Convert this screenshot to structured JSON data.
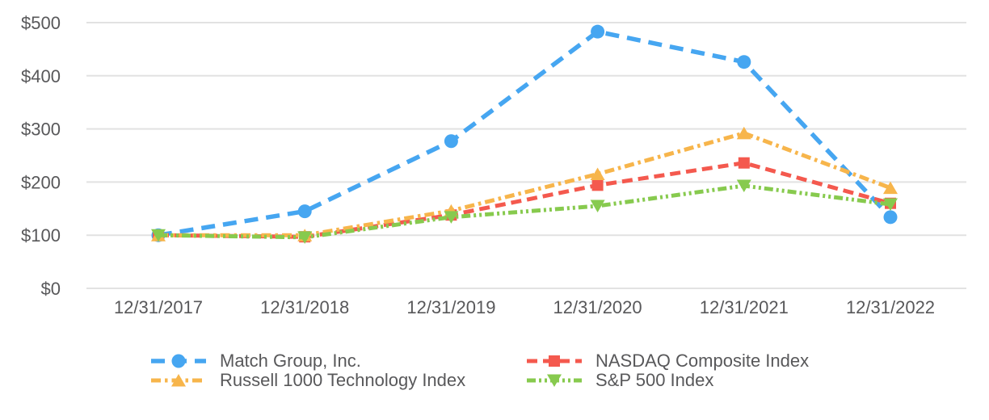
{
  "chart_data": {
    "type": "line",
    "title": "",
    "xlabel": "",
    "ylabel": "",
    "categories": [
      "12/31/2017",
      "12/31/2018",
      "12/31/2019",
      "12/31/2020",
      "12/31/2021",
      "12/31/2022"
    ],
    "series": [
      {
        "name": "Match Group, Inc.",
        "color": "#46a6f1",
        "marker": "circle",
        "dash": "long-dash",
        "values": [
          100,
          145,
          277,
          483,
          426,
          134
        ]
      },
      {
        "name": "NASDAQ Composite Index",
        "color": "#f4594e",
        "marker": "square",
        "dash": "dash",
        "values": [
          100,
          97,
          138,
          194,
          236,
          160
        ]
      },
      {
        "name": "Russell 1000 Technology Index",
        "color": "#f7b54b",
        "marker": "triangle-up",
        "dash": "dash-dot",
        "values": [
          100,
          100,
          146,
          215,
          292,
          189
        ]
      },
      {
        "name": "S&P 500 Index",
        "color": "#87ca4e",
        "marker": "triangle-down",
        "dash": "dash-dot-dot",
        "values": [
          100,
          96,
          134,
          155,
          193,
          158
        ]
      }
    ],
    "y_ticks": [
      "$0",
      "$100",
      "$200",
      "$300",
      "$400",
      "$500"
    ],
    "y_tick_values": [
      0,
      100,
      200,
      300,
      400,
      500
    ],
    "ylim": [
      0,
      500
    ],
    "grid": "horizontal",
    "legend_position": "bottom",
    "colors": {
      "axis_text": "#58585a",
      "gridline": "#e2e2e2",
      "background": "#ffffff"
    }
  }
}
